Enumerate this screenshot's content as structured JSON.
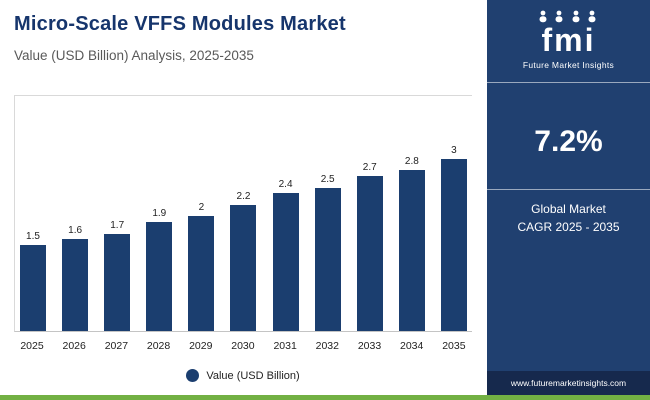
{
  "header": {
    "title": "Micro-Scale VFFS Modules Market",
    "subtitle": "Value (USD Billion) Analysis, 2025-2035"
  },
  "chart_data": {
    "type": "bar",
    "categories": [
      "2025",
      "2026",
      "2027",
      "2028",
      "2029",
      "2030",
      "2031",
      "2032",
      "2033",
      "2034",
      "2035"
    ],
    "values": [
      1.5,
      1.6,
      1.7,
      1.9,
      2,
      2.2,
      2.4,
      2.5,
      2.7,
      2.8,
      3
    ],
    "title": "Micro-Scale VFFS Modules Market",
    "xlabel": "",
    "ylabel": "Value (USD Billion)",
    "ylim": [
      0,
      3
    ],
    "grid": false,
    "legend_label": "Value (USD Billion)",
    "legend_position": "bottom",
    "bar_color": "#1b3e6f"
  },
  "sidebar": {
    "logo_text": "fmi",
    "logo_subtext": "Future Market Insights",
    "cagr_value": "7.2%",
    "cagr_label_line1": "Global Market",
    "cagr_label_line2": "CAGR 2025 - 2035",
    "footer_url": "www.futuremarketinsights.com"
  },
  "colors": {
    "title_navy": "#16356c",
    "bar_navy": "#1b3e6f",
    "sidebar_navy": "#204070",
    "sidebar_footer_navy": "#16294d",
    "accent_green": "#72b043"
  }
}
